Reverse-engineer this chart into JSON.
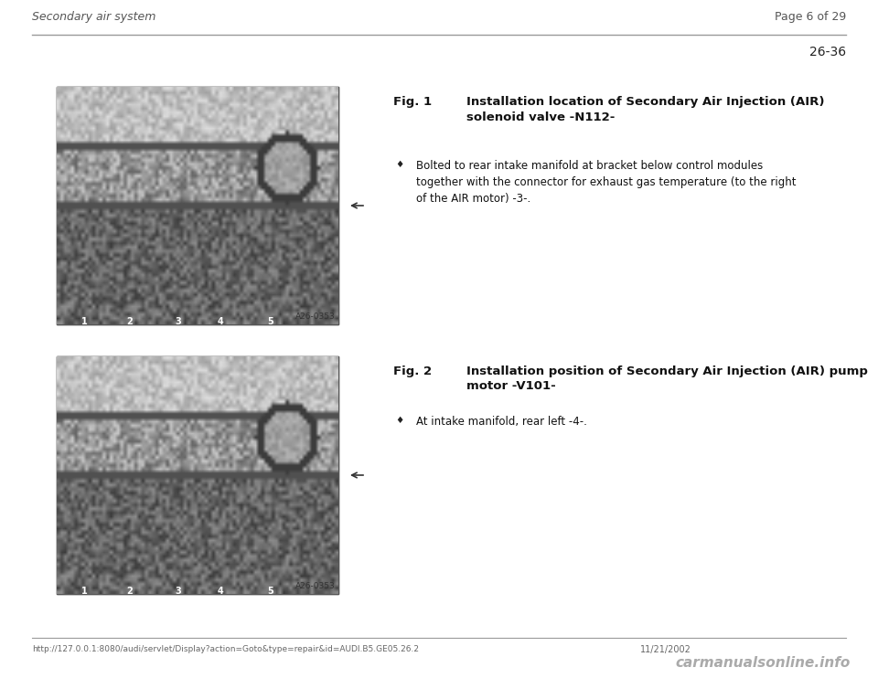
{
  "bg_color": "#ffffff",
  "header_left": "Secondary air system",
  "header_right": "Page 6 of 29",
  "page_number": "26-36",
  "fig1_title": "Fig. 1",
  "fig1_title_bold": "Installation location of Secondary Air Injection (AIR)\nsolenoid valve -N112-",
  "fig1_bullet": "Bolted to rear intake manifold at bracket below control modules\ntogether with the connector for exhaust gas temperature (to the right\nof the AIR motor) -3-.",
  "fig2_title": "Fig. 2",
  "fig2_title_bold": "Installation position of Secondary Air Injection (AIR) pump\nmotor -V101-",
  "fig2_bullet": "At intake manifold, rear left -4-.",
  "image_label": "A26-0353",
  "footer_url": "http://127.0.0.1:8080/audi/servlet/Display?action=Goto&type=repair&id=AUDI.B5.GE05.26.2",
  "footer_date": "11/21/2002",
  "footer_logo": "carmanualsonline.info"
}
